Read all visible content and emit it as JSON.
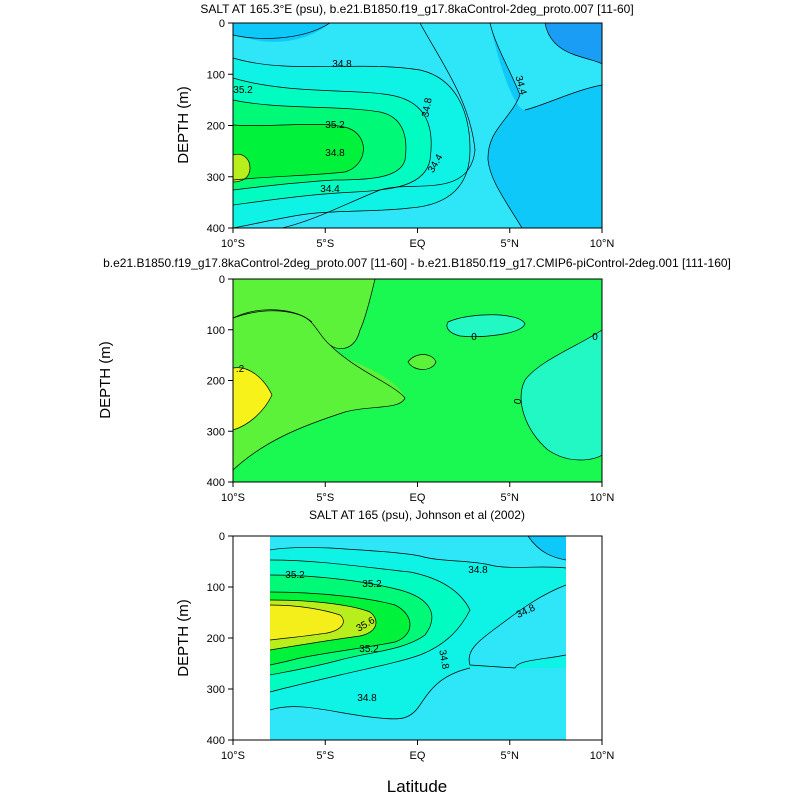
{
  "chart_data": [
    {
      "type": "contour",
      "title": "SALT AT 165.3°E (psu), b.e21.B1850.f19_g17.8kaControl-2deg_proto.007 [11-60]",
      "ylabel": "DEPTH (m)",
      "ylim": [
        400,
        0
      ],
      "yticks": [
        "0",
        "100",
        "200",
        "300",
        "400"
      ],
      "xlim": [
        -10,
        10
      ],
      "xticks": [
        "10°S",
        "5°S",
        "EQ",
        "5°N",
        "10°N"
      ],
      "contour_levels": [
        34.2,
        34.4,
        34.6,
        34.8,
        35.0,
        35.2,
        35.4
      ],
      "contour_labels": [
        "35.2",
        "34.8",
        "35.2",
        "34.8",
        "34.4",
        "34.8",
        "34.4",
        "34.4"
      ]
    },
    {
      "type": "contour",
      "title": "b.e21.B1850.f19_g17.8kaControl-2deg_proto.007 [11-60] - b.e21.B1850.f19_g17.CMIP6-piControl-2deg.001 [111-160]",
      "ylabel": "DEPTH (m)",
      "ylim": [
        400,
        0
      ],
      "yticks": [
        "0",
        "100",
        "200",
        "300",
        "400"
      ],
      "xlim": [
        -10,
        10
      ],
      "xticks": [
        "10°S",
        "5°S",
        "EQ",
        "5°N",
        "10°N"
      ],
      "contour_levels": [
        -0.1,
        0,
        0.1,
        0.2
      ],
      "contour_labels": [
        ".2",
        "0",
        "0",
        "0"
      ]
    },
    {
      "type": "contour",
      "title": "SALT AT 165 (psu), Johnson et al (2002)",
      "ylabel": "DEPTH (m)",
      "xlabel": "Latitude",
      "ylim": [
        400,
        0
      ],
      "yticks": [
        "0",
        "100",
        "200",
        "300",
        "400"
      ],
      "xlim": [
        -10,
        10
      ],
      "xticks": [
        "10°S",
        "5°S",
        "EQ",
        "5°N",
        "10°N"
      ],
      "data_lat_range": [
        -8,
        8
      ],
      "contour_levels": [
        34.4,
        34.6,
        34.8,
        35.0,
        35.2,
        35.4,
        35.6
      ],
      "contour_labels": [
        "35.2",
        "35.2",
        "34.8",
        "35.6",
        "34.8",
        "35.2",
        "34.8",
        "34.8"
      ]
    }
  ],
  "colors": {
    "c342": "#1a9ef5",
    "c344": "#0fc8fa",
    "c346": "#2ee6f7",
    "c348": "#0ff2e6",
    "c350": "#00fcc0",
    "c352": "#00fa78",
    "c354": "#00f23a",
    "c356": "#b8ee1c",
    "c358": "#f4ee1a",
    "d_neg": "#22f8c4",
    "d_zero": "#1af852",
    "d_pos": "#5cf23a",
    "d_pos2": "#f6f21a"
  }
}
